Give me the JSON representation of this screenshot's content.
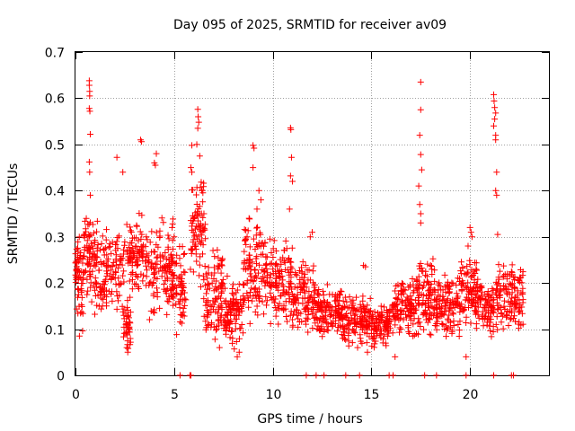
{
  "chart_data": {
    "type": "scatter",
    "title": "Day 095 of 2025, SRMTID for receiver av09",
    "xlabel": "GPS time / hours",
    "ylabel": "SRMTID / TECUs",
    "xlim": [
      0,
      24
    ],
    "ylim": [
      0,
      0.7
    ],
    "xticks": [
      0,
      5,
      10,
      15,
      20
    ],
    "xtick_labels": [
      "0",
      "5",
      "10",
      "15",
      "20"
    ],
    "yticks": [
      0,
      0.1,
      0.2,
      0.3,
      0.4,
      0.5,
      0.6,
      0.7
    ],
    "ytick_labels": [
      "0",
      "0.1",
      "0.2",
      "0.3",
      "0.4",
      "0.5",
      "0.6",
      "0.7"
    ],
    "grid": true,
    "marker": "+",
    "color": "#ff0000",
    "series": [
      {
        "name": "SRMTID",
        "seed": 95,
        "segments": [
          {
            "x0": 0.0,
            "x1": 0.4,
            "lo": 0.09,
            "hi": 0.33,
            "n": 60
          },
          {
            "x0": 0.4,
            "x1": 0.8,
            "lo": 0.17,
            "hi": 0.35,
            "n": 50
          },
          {
            "x0": 0.8,
            "x1": 2.5,
            "lo": 0.12,
            "hi": 0.34,
            "n": 150
          },
          {
            "x0": 2.4,
            "x1": 2.8,
            "lo": 0.05,
            "hi": 0.18,
            "n": 40
          },
          {
            "x0": 2.6,
            "x1": 3.6,
            "lo": 0.17,
            "hi": 0.36,
            "n": 90
          },
          {
            "x0": 3.6,
            "x1": 5.0,
            "lo": 0.1,
            "hi": 0.35,
            "n": 120
          },
          {
            "x0": 4.8,
            "x1": 5.6,
            "lo": 0.08,
            "hi": 0.3,
            "n": 70
          },
          {
            "x0": 5.8,
            "x1": 6.6,
            "lo": 0.18,
            "hi": 0.45,
            "n": 80
          },
          {
            "x0": 6.5,
            "x1": 7.5,
            "lo": 0.07,
            "hi": 0.28,
            "n": 100
          },
          {
            "x0": 7.5,
            "x1": 8.5,
            "lo": 0.05,
            "hi": 0.23,
            "n": 100
          },
          {
            "x0": 8.5,
            "x1": 9.5,
            "lo": 0.1,
            "hi": 0.35,
            "n": 100
          },
          {
            "x0": 9.5,
            "x1": 11.0,
            "lo": 0.1,
            "hi": 0.3,
            "n": 140
          },
          {
            "x0": 11.0,
            "x1": 12.2,
            "lo": 0.08,
            "hi": 0.25,
            "n": 110
          },
          {
            "x0": 12.2,
            "x1": 13.5,
            "lo": 0.08,
            "hi": 0.2,
            "n": 120
          },
          {
            "x0": 13.5,
            "x1": 15.0,
            "lo": 0.06,
            "hi": 0.18,
            "n": 140
          },
          {
            "x0": 15.0,
            "x1": 16.0,
            "lo": 0.05,
            "hi": 0.16,
            "n": 100
          },
          {
            "x0": 16.0,
            "x1": 17.2,
            "lo": 0.07,
            "hi": 0.22,
            "n": 110
          },
          {
            "x0": 17.2,
            "x1": 18.2,
            "lo": 0.08,
            "hi": 0.26,
            "n": 100
          },
          {
            "x0": 18.2,
            "x1": 19.5,
            "lo": 0.08,
            "hi": 0.22,
            "n": 120
          },
          {
            "x0": 19.5,
            "x1": 20.6,
            "lo": 0.1,
            "hi": 0.26,
            "n": 110
          },
          {
            "x0": 20.6,
            "x1": 21.2,
            "lo": 0.08,
            "hi": 0.2,
            "n": 60
          },
          {
            "x0": 21.3,
            "x1": 22.7,
            "lo": 0.09,
            "hi": 0.25,
            "n": 130
          }
        ],
        "points": [
          {
            "x": 0.7,
            "y": 0.638
          },
          {
            "x": 0.7,
            "y": 0.628
          },
          {
            "x": 0.72,
            "y": 0.615
          },
          {
            "x": 0.72,
            "y": 0.605
          },
          {
            "x": 0.7,
            "y": 0.578
          },
          {
            "x": 0.73,
            "y": 0.572
          },
          {
            "x": 0.75,
            "y": 0.522
          },
          {
            "x": 0.7,
            "y": 0.462
          },
          {
            "x": 0.72,
            "y": 0.44
          },
          {
            "x": 0.75,
            "y": 0.39
          },
          {
            "x": 2.1,
            "y": 0.472
          },
          {
            "x": 2.4,
            "y": 0.44
          },
          {
            "x": 3.3,
            "y": 0.51
          },
          {
            "x": 3.35,
            "y": 0.506
          },
          {
            "x": 4.1,
            "y": 0.48
          },
          {
            "x": 4.0,
            "y": 0.46
          },
          {
            "x": 4.05,
            "y": 0.455
          },
          {
            "x": 5.9,
            "y": 0.498
          },
          {
            "x": 6.2,
            "y": 0.576
          },
          {
            "x": 6.22,
            "y": 0.56
          },
          {
            "x": 6.25,
            "y": 0.548
          },
          {
            "x": 6.2,
            "y": 0.535
          },
          {
            "x": 6.15,
            "y": 0.5
          },
          {
            "x": 6.3,
            "y": 0.475
          },
          {
            "x": 5.85,
            "y": 0.45
          },
          {
            "x": 5.9,
            "y": 0.44
          },
          {
            "x": 6.4,
            "y": 0.4
          },
          {
            "x": 9.0,
            "y": 0.498
          },
          {
            "x": 9.05,
            "y": 0.492
          },
          {
            "x": 9.0,
            "y": 0.45
          },
          {
            "x": 9.3,
            "y": 0.4
          },
          {
            "x": 10.9,
            "y": 0.536
          },
          {
            "x": 10.92,
            "y": 0.532
          },
          {
            "x": 10.95,
            "y": 0.472
          },
          {
            "x": 10.9,
            "y": 0.432
          },
          {
            "x": 11.0,
            "y": 0.42
          },
          {
            "x": 10.85,
            "y": 0.36
          },
          {
            "x": 14.6,
            "y": 0.238
          },
          {
            "x": 14.7,
            "y": 0.235
          },
          {
            "x": 17.5,
            "y": 0.635
          },
          {
            "x": 17.5,
            "y": 0.575
          },
          {
            "x": 17.45,
            "y": 0.52
          },
          {
            "x": 17.5,
            "y": 0.478
          },
          {
            "x": 17.55,
            "y": 0.445
          },
          {
            "x": 17.4,
            "y": 0.41
          },
          {
            "x": 17.45,
            "y": 0.37
          },
          {
            "x": 17.5,
            "y": 0.35
          },
          {
            "x": 17.5,
            "y": 0.33
          },
          {
            "x": 21.2,
            "y": 0.608
          },
          {
            "x": 21.22,
            "y": 0.594
          },
          {
            "x": 21.25,
            "y": 0.58
          },
          {
            "x": 21.3,
            "y": 0.568
          },
          {
            "x": 21.25,
            "y": 0.555
          },
          {
            "x": 21.2,
            "y": 0.54
          },
          {
            "x": 21.3,
            "y": 0.52
          },
          {
            "x": 21.3,
            "y": 0.51
          },
          {
            "x": 21.35,
            "y": 0.44
          },
          {
            "x": 21.3,
            "y": 0.4
          },
          {
            "x": 21.35,
            "y": 0.39
          },
          {
            "x": 21.4,
            "y": 0.305
          },
          {
            "x": 20.0,
            "y": 0.32
          },
          {
            "x": 20.1,
            "y": 0.3
          },
          {
            "x": 19.9,
            "y": 0.28
          },
          {
            "x": 20.05,
            "y": 0.31
          },
          {
            "x": 8.7,
            "y": 0.3
          },
          {
            "x": 8.8,
            "y": 0.34
          },
          {
            "x": 9.2,
            "y": 0.36
          },
          {
            "x": 9.4,
            "y": 0.38
          },
          {
            "x": 12.0,
            "y": 0.31
          },
          {
            "x": 11.9,
            "y": 0.3
          },
          {
            "x": 5.0,
            "y": 0.3
          },
          {
            "x": 4.9,
            "y": 0.32
          },
          {
            "x": 7.3,
            "y": 0.06
          },
          {
            "x": 8.2,
            "y": 0.04
          },
          {
            "x": 8.3,
            "y": 0.05
          },
          {
            "x": 14.8,
            "y": 0.05
          },
          {
            "x": 14.3,
            "y": 0.06
          },
          {
            "x": 16.2,
            "y": 0.04
          },
          {
            "x": 19.8,
            "y": 0.04
          },
          {
            "x": 0.2,
            "y": 0.085
          },
          {
            "x": 2.6,
            "y": 0.06
          },
          {
            "x": 2.65,
            "y": 0.05
          }
        ],
        "zero_x": [
          5.3,
          5.8,
          5.85,
          11.7,
          12.2,
          12.6,
          13.7,
          14.4,
          15.9,
          16.1,
          17.7,
          18.3,
          19.8,
          21.2,
          22.1,
          22.2
        ]
      }
    ]
  }
}
